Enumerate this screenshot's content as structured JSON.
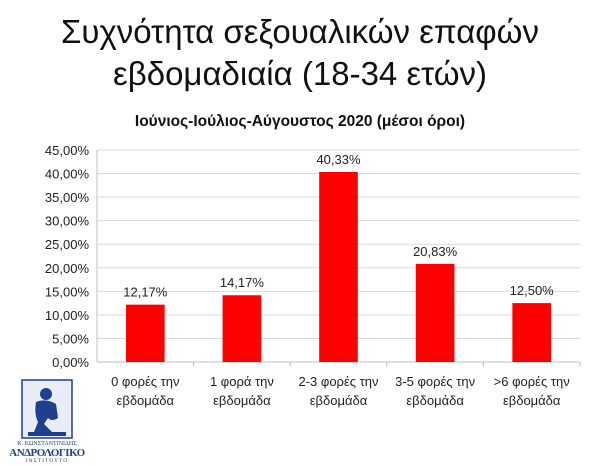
{
  "title_line1": "Συχνότητα σεξουαλικών επαφών",
  "title_line2": "εβδομαδιαία (18-34 ετών)",
  "logo": {
    "line1": "Κ. ΚΩΝΣΤΑΝΤΙΝΙΔΗΣ",
    "line2": "ΑΝΔΡΟΛΟΓΙΚΟ",
    "line3": "ΙΝΣΤΙΤΟΥΤΟ"
  },
  "colors": {
    "bar": "#ff0000",
    "grid": "#d9d9d9",
    "axis": "#bfbfbf",
    "logo": "#1f3f8f"
  },
  "chart_data": {
    "type": "bar",
    "title": "Ιούνιος-Ιούλιος-Αύγουστος 2020 (μέσοι όροι)",
    "categories": [
      [
        "0 φορές την",
        "εβδομάδα"
      ],
      [
        "1 φορά την",
        "εβδομάδα"
      ],
      [
        "2-3 φορές την",
        "εβδομάδα"
      ],
      [
        "3-5 φορές την",
        "εβδομάδα"
      ],
      [
        ">6 φορές την",
        "εβδομάδα"
      ]
    ],
    "values": [
      12.17,
      14.17,
      40.33,
      20.83,
      12.5
    ],
    "data_labels": [
      "12,17%",
      "14,17%",
      "40,33%",
      "20,83%",
      "12,50%"
    ],
    "ylim": [
      0,
      45
    ],
    "yticks": [
      0,
      5,
      10,
      15,
      20,
      25,
      30,
      35,
      40,
      45
    ],
    "ytick_labels": [
      "0,00%",
      "5,00%",
      "10,00%",
      "15,00%",
      "20,00%",
      "25,00%",
      "30,00%",
      "35,00%",
      "40,00%",
      "45,00%"
    ],
    "grid": true,
    "legend": "none"
  }
}
